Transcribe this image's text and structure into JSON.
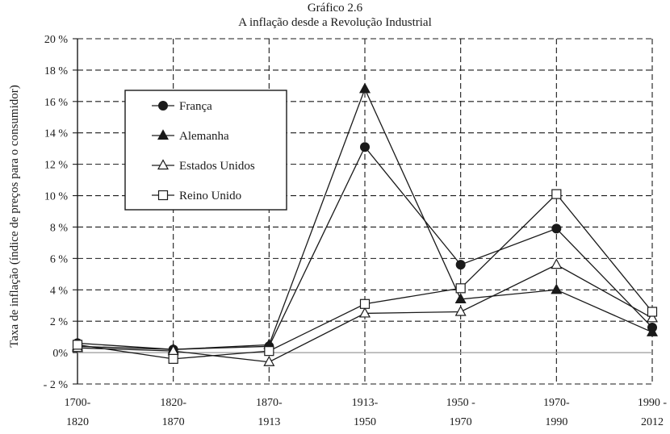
{
  "chart_data": {
    "type": "line",
    "title": "Gráfico 2.6",
    "subtitle": "A inflação desde a Revolução Industrial",
    "ylabel": "Taxa de inflação (índice de preços para o consumidor)",
    "ylim": [
      -2,
      20
    ],
    "yticks": [
      {
        "v": 20,
        "label": "20 %"
      },
      {
        "v": 18,
        "label": "18 %"
      },
      {
        "v": 16,
        "label": "16 %"
      },
      {
        "v": 14,
        "label": "14 %"
      },
      {
        "v": 12,
        "label": "12 %"
      },
      {
        "v": 10,
        "label": "10 %"
      },
      {
        "v": 8,
        "label": "8 %"
      },
      {
        "v": 6,
        "label": "6 %"
      },
      {
        "v": 4,
        "label": "4 %"
      },
      {
        "v": 2,
        "label": "2 %"
      },
      {
        "v": 0,
        "label": "0%"
      },
      {
        "v": -2,
        "label": "- 2 %"
      }
    ],
    "categories": [
      [
        "1700-",
        "1820"
      ],
      [
        "1820-",
        "1870"
      ],
      [
        "1870-",
        "1913"
      ],
      [
        "1913-",
        "1950"
      ],
      [
        "1950 -",
        "1970"
      ],
      [
        "1970-",
        "1990"
      ],
      [
        "1990 -",
        "2012"
      ]
    ],
    "grid": true,
    "legend_position": "top-left",
    "series": [
      {
        "name": "França",
        "marker": "circle-filled",
        "values": [
          0.6,
          0.2,
          0.4,
          13.1,
          5.6,
          7.9,
          1.6
        ]
      },
      {
        "name": "Alemanha",
        "marker": "triangle-filled",
        "values": [
          0.4,
          0.2,
          0.5,
          16.8,
          3.4,
          4.0,
          1.3
        ]
      },
      {
        "name": "Estados Unidos",
        "marker": "triangle-open",
        "values": [
          0.3,
          0.1,
          -0.6,
          2.5,
          2.6,
          5.6,
          2.2
        ]
      },
      {
        "name": "Reino Unido",
        "marker": "square-open",
        "values": [
          0.5,
          -0.4,
          0.1,
          3.1,
          4.1,
          10.1,
          2.6
        ]
      }
    ]
  }
}
